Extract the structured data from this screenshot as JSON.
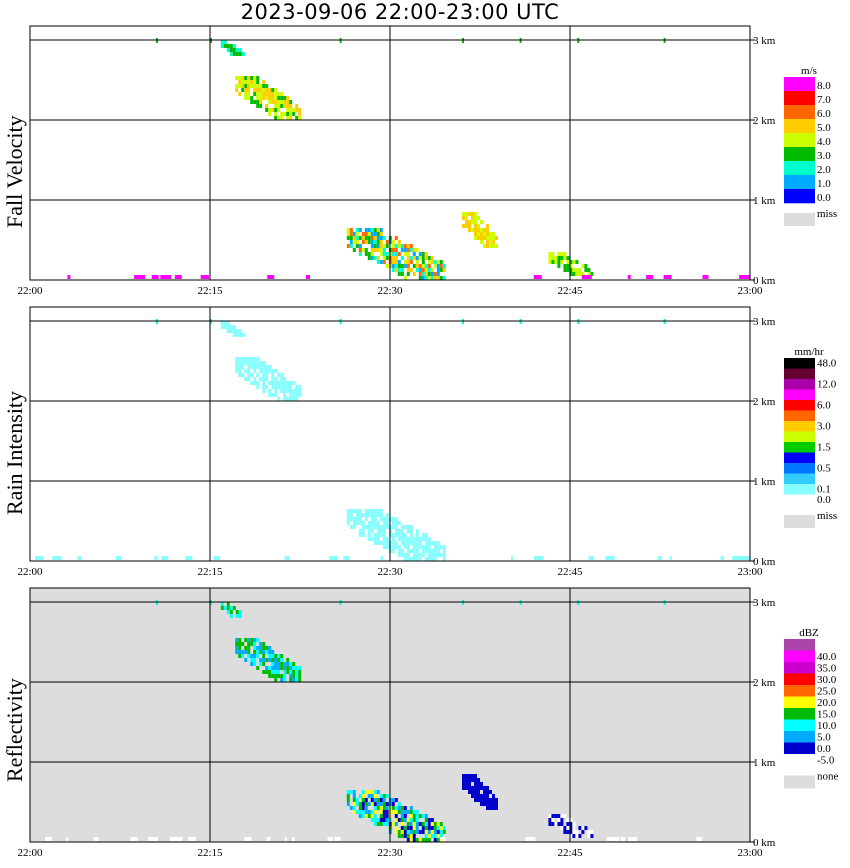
{
  "title": "2023-09-06   22:00-23:00 UTC",
  "x_ticks": [
    "22:00",
    "22:15",
    "22:30",
    "22:45",
    "23:00"
  ],
  "km_ticks": [
    "0 km",
    "1 km",
    "2 km",
    "3 km"
  ],
  "chart_data": [
    {
      "type": "heatmap",
      "ylabel": "Fall Velocity",
      "xlabel": "",
      "xlim": [
        "22:00",
        "23:00"
      ],
      "ylim_km": [
        0,
        3
      ],
      "background": "#ffffff",
      "legend": {
        "unit": "m/s",
        "position": "right",
        "entries": [
          {
            "label": "8.0",
            "color": "#ff00ff"
          },
          {
            "label": "7.0",
            "color": "#ff0000"
          },
          {
            "label": "6.0",
            "color": "#ff6600"
          },
          {
            "label": "5.0",
            "color": "#ffcc00"
          },
          {
            "label": "4.0",
            "color": "#ccff00"
          },
          {
            "label": "3.0",
            "color": "#00bb00"
          },
          {
            "label": "2.0",
            "color": "#00ffcc"
          },
          {
            "label": "1.0",
            "color": "#00aaff"
          },
          {
            "label": "0.0",
            "color": "#0000ff"
          }
        ],
        "missing": {
          "label": "miss",
          "color": "#dddddd"
        }
      },
      "echoes": [
        {
          "t0": 22.285,
          "t1": 22.375,
          "h0": 2.0,
          "h1": 2.55,
          "colors": [
            "#ffcc00",
            "#ccff00",
            "#00bb00"
          ]
        },
        {
          "t0": 22.265,
          "t1": 22.295,
          "h0": 2.8,
          "h1": 3.0,
          "colors": [
            "#00bb00",
            "#00ffcc"
          ]
        },
        {
          "t0": 22.44,
          "t1": 22.575,
          "h0": 0.0,
          "h1": 0.65,
          "colors": [
            "#00bb00",
            "#00ffcc",
            "#00aaff",
            "#ccff00",
            "#ffcc00",
            "#ff6600"
          ]
        },
        {
          "t0": 22.6,
          "t1": 22.65,
          "h0": 0.4,
          "h1": 0.85,
          "colors": [
            "#ffcc00",
            "#ccff00"
          ]
        },
        {
          "t0": 22.72,
          "t1": 22.78,
          "h0": 0.05,
          "h1": 0.35,
          "colors": [
            "#ccff00",
            "#00bb00"
          ]
        }
      ],
      "surface_color": "#ff00ff"
    },
    {
      "type": "heatmap",
      "ylabel": "Rain Intensity",
      "xlabel": "",
      "xlim": [
        "22:00",
        "23:00"
      ],
      "ylim_km": [
        0,
        3
      ],
      "background": "#ffffff",
      "legend": {
        "unit": "mm/hr",
        "position": "right",
        "entries": [
          {
            "label": "48.0",
            "color": "#000000"
          },
          {
            "label": "",
            "color": "#660033"
          },
          {
            "label": "12.0",
            "color": "#aa00aa"
          },
          {
            "label": "",
            "color": "#ff00ff"
          },
          {
            "label": "6.0",
            "color": "#ff0000"
          },
          {
            "label": "",
            "color": "#ff6600"
          },
          {
            "label": "3.0",
            "color": "#ffcc00"
          },
          {
            "label": "",
            "color": "#ccff00"
          },
          {
            "label": "1.5",
            "color": "#00cc00"
          },
          {
            "label": "",
            "color": "#0000ff"
          },
          {
            "label": "0.5",
            "color": "#0077ff"
          },
          {
            "label": "",
            "color": "#33ccff"
          },
          {
            "label": "0.1",
            "color": "#88ffff"
          },
          {
            "label": "0.0",
            "color": "#ffffff"
          }
        ],
        "missing": {
          "label": "miss",
          "color": "#dddddd"
        }
      },
      "echoes": [
        {
          "t0": 22.285,
          "t1": 22.375,
          "h0": 2.0,
          "h1": 2.55,
          "colors": [
            "#88ffff"
          ]
        },
        {
          "t0": 22.265,
          "t1": 22.295,
          "h0": 2.8,
          "h1": 3.0,
          "colors": [
            "#88ffff"
          ]
        },
        {
          "t0": 22.44,
          "t1": 22.575,
          "h0": 0.0,
          "h1": 0.65,
          "colors": [
            "#88ffff"
          ]
        }
      ],
      "surface_color": "#88ffff"
    },
    {
      "type": "heatmap",
      "ylabel": "Reflectivity",
      "xlabel": "",
      "xlim": [
        "22:00",
        "23:00"
      ],
      "ylim_km": [
        0,
        3
      ],
      "background": "#dddddd",
      "legend": {
        "unit": "dBZ",
        "position": "right",
        "entries": [
          {
            "label": "",
            "color": "#aa44aa"
          },
          {
            "label": "40.0",
            "color": "#ff00ff"
          },
          {
            "label": "35.0",
            "color": "#cc00cc"
          },
          {
            "label": "30.0",
            "color": "#ff0000"
          },
          {
            "label": "25.0",
            "color": "#ff6600"
          },
          {
            "label": "20.0",
            "color": "#ffff00"
          },
          {
            "label": "15.0",
            "color": "#00bb00"
          },
          {
            "label": "10.0",
            "color": "#00ffff"
          },
          {
            "label": "5.0",
            "color": "#00aaff"
          },
          {
            "label": "0.0",
            "color": "#0000cc"
          },
          {
            "label": "-5.0",
            "color": "#ffffff"
          }
        ],
        "missing": {
          "label": "none",
          "color": "#dddddd"
        }
      },
      "echoes": [
        {
          "t0": 22.285,
          "t1": 22.375,
          "h0": 2.0,
          "h1": 2.55,
          "colors": [
            "#00ffff",
            "#00bb00",
            "#00aaff"
          ]
        },
        {
          "t0": 22.265,
          "t1": 22.295,
          "h0": 2.8,
          "h1": 3.0,
          "colors": [
            "#00ffff",
            "#00bb00"
          ]
        },
        {
          "t0": 22.44,
          "t1": 22.575,
          "h0": 0.0,
          "h1": 0.65,
          "colors": [
            "#0000cc",
            "#00aaff",
            "#00ffff",
            "#00bb00",
            "#ffff00"
          ]
        },
        {
          "t0": 22.6,
          "t1": 22.65,
          "h0": 0.4,
          "h1": 0.85,
          "colors": [
            "#0000cc"
          ]
        },
        {
          "t0": 22.72,
          "t1": 22.78,
          "h0": 0.05,
          "h1": 0.35,
          "colors": [
            "#0000cc",
            "#ffffff"
          ]
        }
      ],
      "surface_color": "#ffffff"
    }
  ]
}
